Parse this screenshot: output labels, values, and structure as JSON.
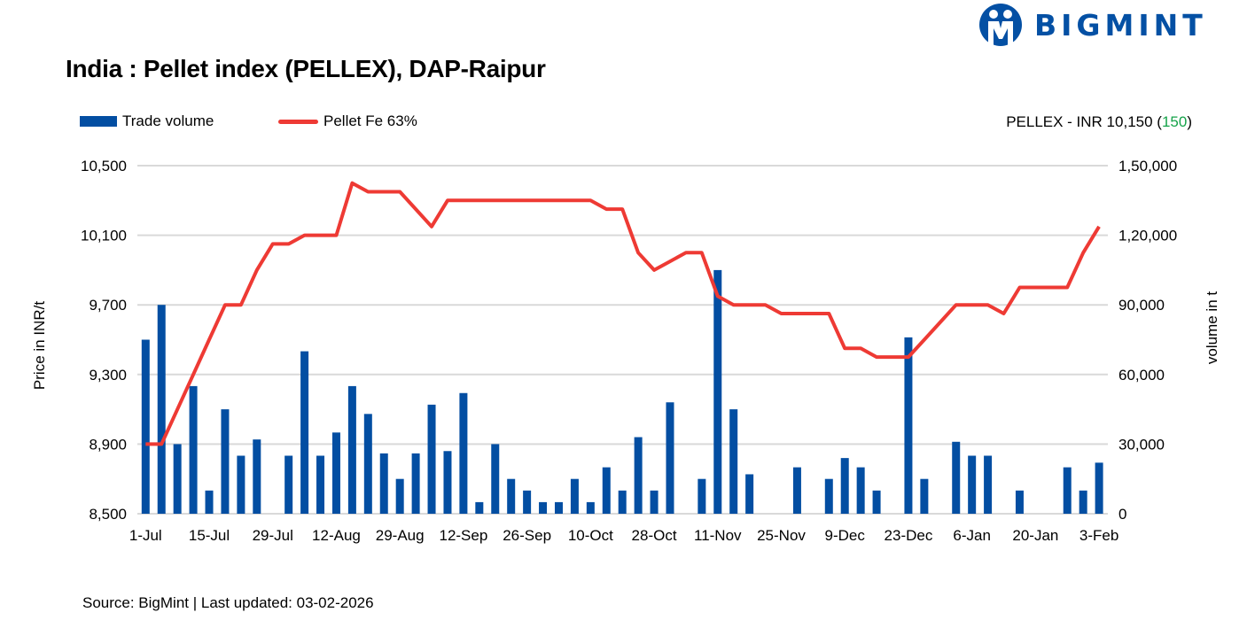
{
  "brand": {
    "name": "BIGMINT",
    "color": "#0450a4"
  },
  "header": {
    "pellex_label": "PELLEX - INR 10,150 (",
    "pellex_change": "150",
    "pellex_close": ")",
    "change_color": "#16a34a"
  },
  "footer": {
    "source": "Source: BigMint | Last updated: 03-02-2026"
  },
  "chart_data": {
    "type": "bar+line",
    "title": "India : Pellet index (PELLEX), DAP-Raipur",
    "ylabel_left": "Price in INR/t",
    "ylabel_right": "volume in t",
    "ylim_left": [
      8500,
      10500
    ],
    "ylim_right": [
      0,
      150000
    ],
    "left_ticks": [
      "8,500",
      "8,900",
      "9,300",
      "9,700",
      "10,100",
      "10,500"
    ],
    "left_tick_values": [
      8500,
      8900,
      9300,
      9700,
      10100,
      10500
    ],
    "right_ticks": [
      "0",
      "30,000",
      "60,000",
      "90,000",
      "1,20,000",
      "1,50,000"
    ],
    "x_tick_labels": [
      "1-Jul",
      "15-Jul",
      "29-Jul",
      "12-Aug",
      "29-Aug",
      "12-Sep",
      "26-Sep",
      "10-Oct",
      "28-Oct",
      "11-Nov",
      "25-Nov",
      "9-Dec",
      "23-Dec",
      "6-Jan",
      "20-Jan",
      "3-Feb"
    ],
    "x_tick_every": 4,
    "n_points": 61,
    "grid": true,
    "legend_position": "top-left",
    "series": [
      {
        "name": "Trade volume",
        "type": "bar",
        "axis": "right",
        "color": "#034ea2",
        "values": [
          75000,
          90000,
          30000,
          55000,
          10000,
          45000,
          25000,
          32000,
          0,
          25000,
          70000,
          25000,
          35000,
          55000,
          43000,
          26000,
          15000,
          26000,
          47000,
          27000,
          52000,
          5000,
          30000,
          15000,
          10000,
          5000,
          5000,
          15000,
          5000,
          20000,
          10000,
          33000,
          10000,
          48000,
          0,
          15000,
          105000,
          45000,
          17000,
          0,
          0,
          20000,
          0,
          15000,
          24000,
          20000,
          10000,
          0,
          76000,
          15000,
          0,
          31000,
          25000,
          25000,
          0,
          10000,
          0,
          0,
          20000,
          10000,
          22000
        ]
      },
      {
        "name": "Pellet Fe 63%",
        "type": "line",
        "axis": "left",
        "color": "#ee3a34",
        "values": [
          8900,
          8900,
          9100,
          9300,
          9500,
          9700,
          9700,
          9900,
          10050,
          10050,
          10100,
          10100,
          10100,
          10400,
          10350,
          10350,
          10350,
          10250,
          10150,
          10300,
          10300,
          10300,
          10300,
          10300,
          10300,
          10300,
          10300,
          10300,
          10300,
          10250,
          10250,
          10000,
          9900,
          9950,
          10000,
          10000,
          9750,
          9700,
          9700,
          9700,
          9650,
          9650,
          9650,
          9650,
          9450,
          9450,
          9400,
          9400,
          9400,
          9500,
          9600,
          9700,
          9700,
          9700,
          9650,
          9800,
          9800,
          9800,
          9800,
          10000,
          10150
        ]
      }
    ]
  }
}
